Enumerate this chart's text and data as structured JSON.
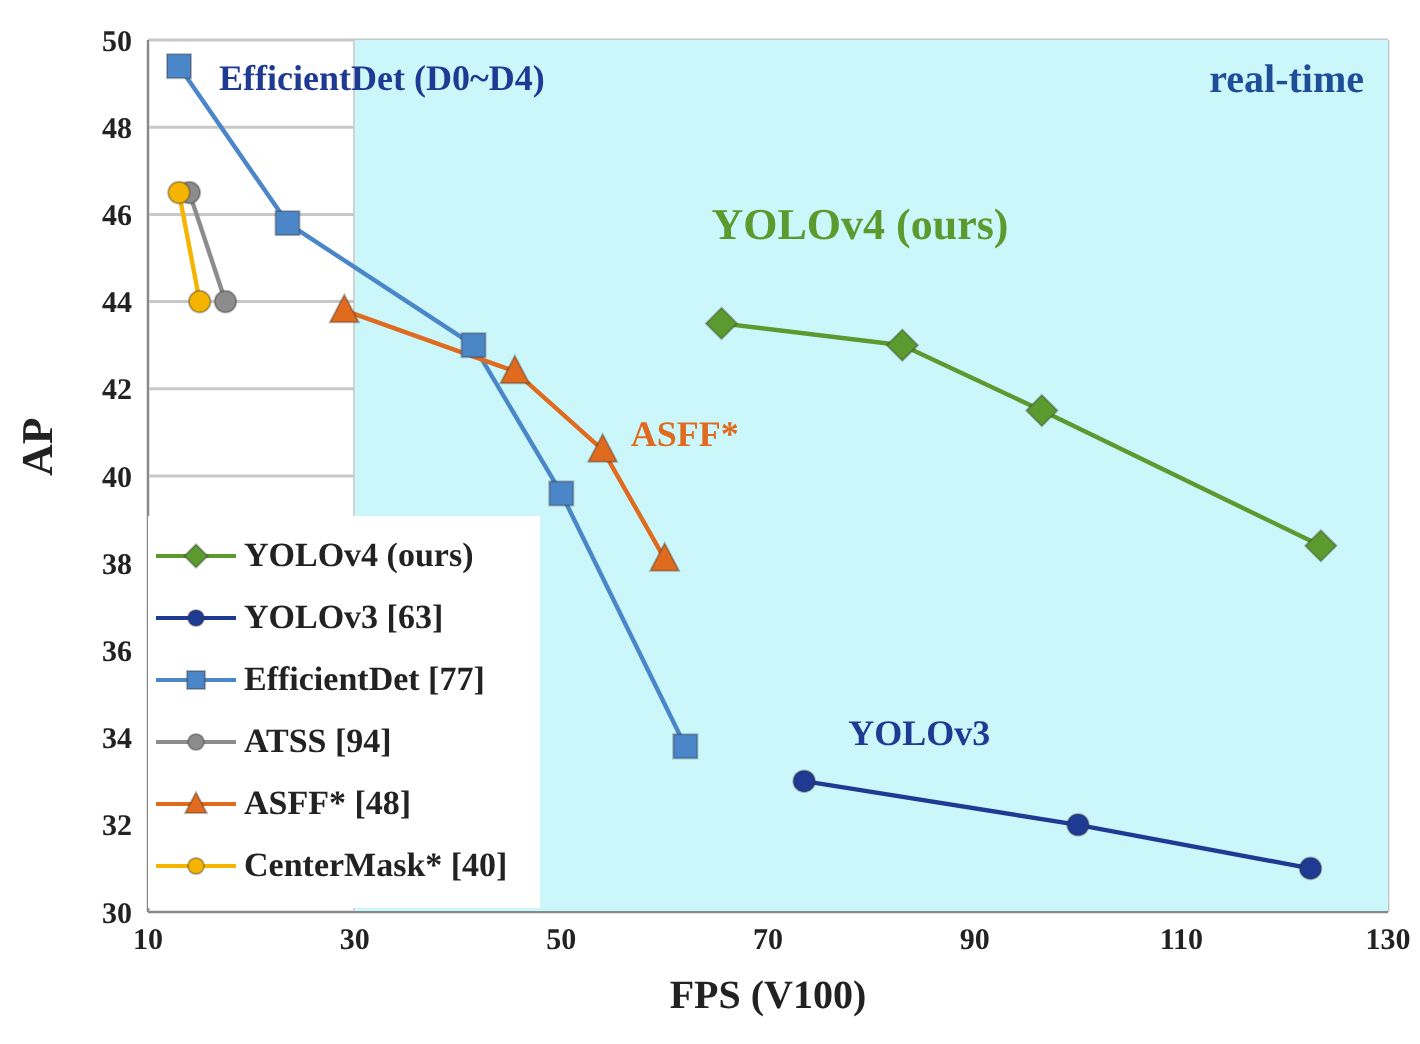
{
  "chart_data": {
    "type": "line",
    "xlabel": "FPS (V100)",
    "ylabel": "AP",
    "xlim": [
      10,
      130
    ],
    "xticks": [
      10,
      30,
      50,
      70,
      90,
      110,
      130
    ],
    "ylim": [
      30,
      50
    ],
    "yticks": [
      30,
      32,
      34,
      36,
      38,
      40,
      42,
      44,
      46,
      48,
      50
    ],
    "grid": true,
    "legend": "bottom left",
    "line_style": "solid",
    "bands": [
      {
        "axis": "x",
        "from": 30,
        "to": 130,
        "label": "real-time",
        "color": "#ccf7fa"
      }
    ],
    "annotations": [
      {
        "text": "EfficientDet (D0~D4)",
        "x": 13,
        "y": 49.4
      },
      {
        "text": "YOLOv4 (ours)",
        "x": 65.5,
        "y": 43.5
      },
      {
        "text": "ASFF*",
        "x": 54,
        "y": 40.6
      },
      {
        "text": "YOLOv3",
        "x": 73.5,
        "y": 33
      }
    ],
    "series": [
      {
        "name": "YOLOv4 (ours)",
        "color": "#5a9a2e",
        "marker": "diamond",
        "x": [
          65.5,
          83,
          96.5,
          123.5
        ],
        "values": [
          43.5,
          43.0,
          41.5,
          38.4
        ]
      },
      {
        "name": "YOLOv3 [63]",
        "color": "#1f3a93",
        "marker": "circle",
        "x": [
          73.5,
          100,
          122.5
        ],
        "values": [
          33,
          32,
          31
        ]
      },
      {
        "name": "EfficientDet [77]",
        "color": "#4a86c8",
        "marker": "square",
        "x": [
          13,
          23.5,
          41.5,
          50,
          62
        ],
        "values": [
          49.4,
          45.8,
          43.0,
          39.6,
          33.8
        ]
      },
      {
        "name": "ATSS [94]",
        "color": "#8c8c8c",
        "marker": "circle",
        "x": [
          14,
          17.5
        ],
        "values": [
          46.5,
          44
        ]
      },
      {
        "name": "ASFF* [48]",
        "color": "#e06a1e",
        "marker": "triangle",
        "x": [
          29,
          45.5,
          54,
          60
        ],
        "values": [
          43.8,
          42.4,
          40.6,
          38.1
        ]
      },
      {
        "name": "CenterMask* [40]",
        "color": "#f5b400",
        "marker": "circle",
        "x": [
          13,
          15
        ],
        "values": [
          46.5,
          44
        ]
      }
    ]
  }
}
